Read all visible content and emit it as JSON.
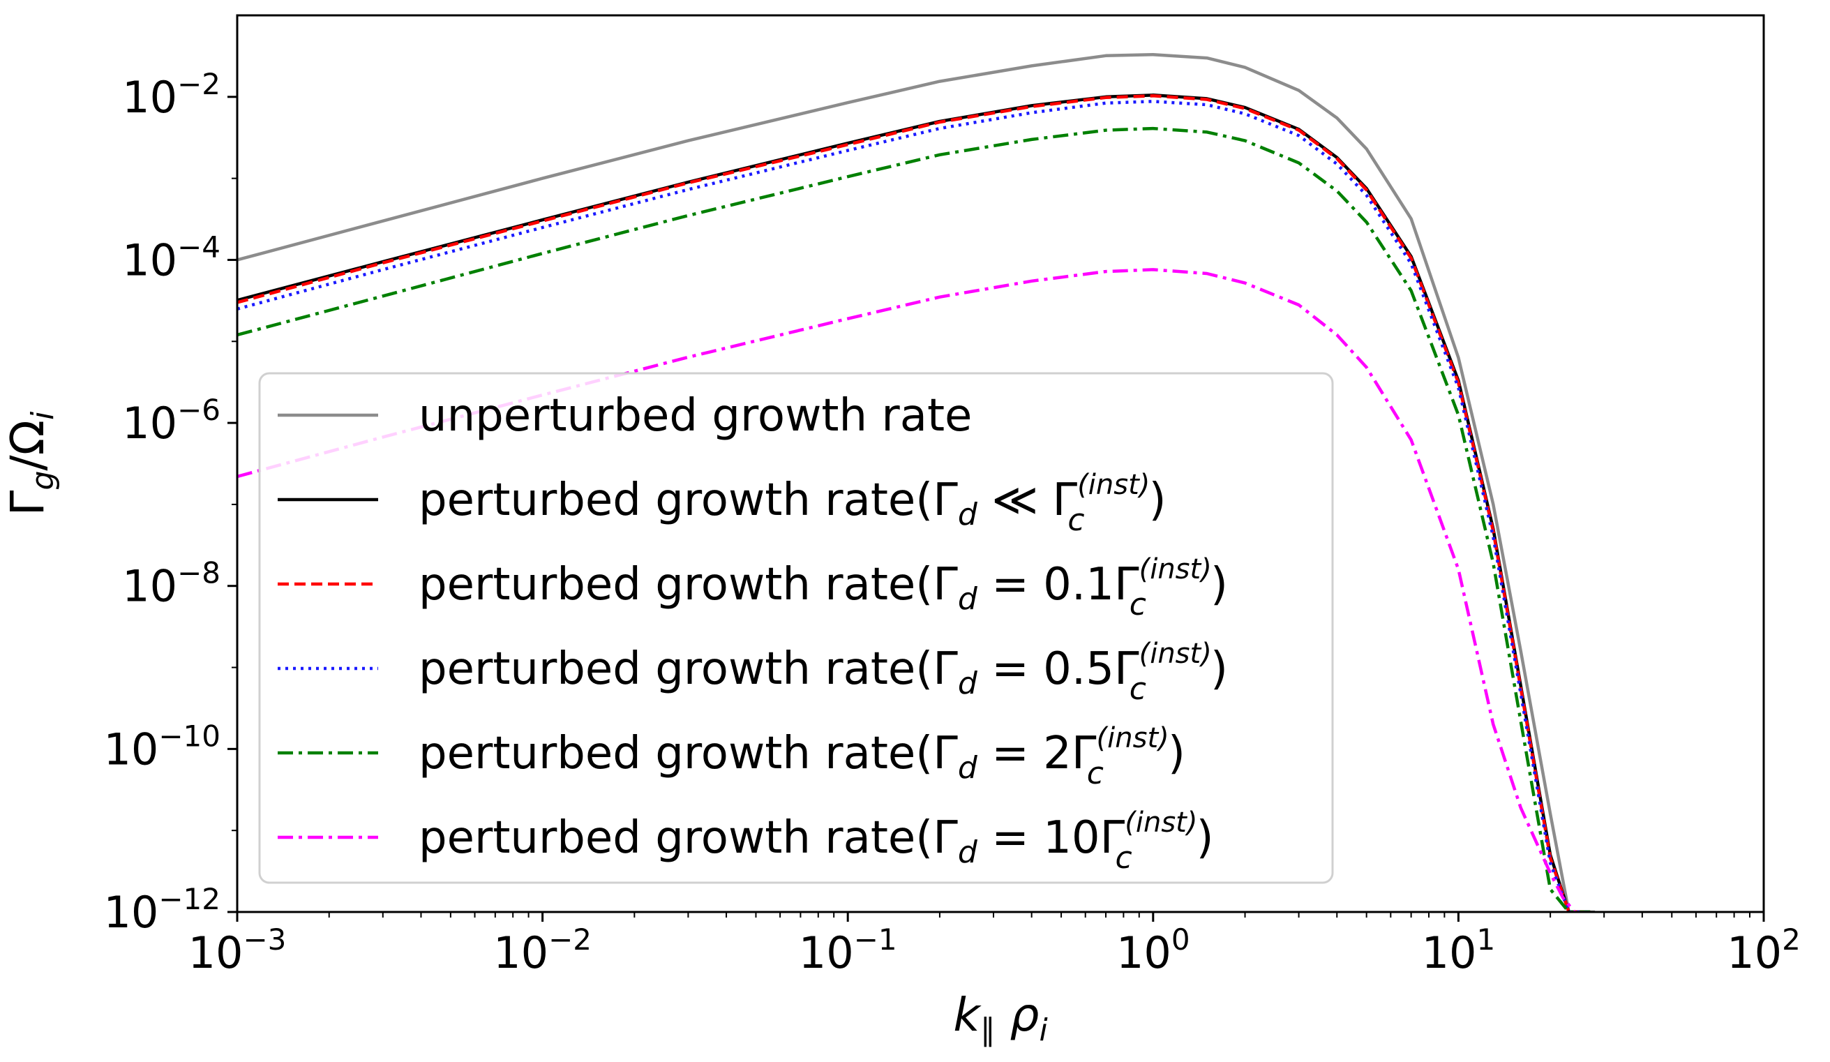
{
  "chart_data": {
    "type": "line",
    "xscale": "log",
    "yscale": "log",
    "xlim": [
      0.001,
      100
    ],
    "ylim": [
      1e-12,
      0.1
    ],
    "grid": false,
    "legend_position": "lower-left",
    "xlabel": {
      "base": "k",
      "sub": "∥",
      "rest": "ρ",
      "rest_sub": "i"
    },
    "ylabel": {
      "base": "Γ",
      "sub": "g",
      "rest": "/Ω",
      "rest_sub": "i"
    },
    "x_ticks": [
      {
        "value": 0.001,
        "base": "10",
        "exp": "−3"
      },
      {
        "value": 0.01,
        "base": "10",
        "exp": "−2"
      },
      {
        "value": 0.1,
        "base": "10",
        "exp": "−1"
      },
      {
        "value": 1,
        "base": "10",
        "exp": "0"
      },
      {
        "value": 10,
        "base": "10",
        "exp": "1"
      },
      {
        "value": 100,
        "base": "10",
        "exp": "2"
      }
    ],
    "y_ticks": [
      {
        "value": 1e-12,
        "base": "10",
        "exp": "−12"
      },
      {
        "value": 1e-10,
        "base": "10",
        "exp": "−10"
      },
      {
        "value": 1e-08,
        "base": "10",
        "exp": "−8"
      },
      {
        "value": 1e-06,
        "base": "10",
        "exp": "−6"
      },
      {
        "value": 0.0001,
        "base": "10",
        "exp": "−4"
      },
      {
        "value": 0.01,
        "base": "10",
        "exp": "−2"
      }
    ],
    "series": [
      {
        "name": "unperturbed growth rate",
        "color": "#8c8c8c",
        "dash": "solid",
        "x": [
          0.001,
          0.003,
          0.01,
          0.03,
          0.1,
          0.2,
          0.4,
          0.7,
          1.0,
          1.5,
          2,
          3,
          4,
          5,
          7,
          10,
          13,
          16,
          20,
          23,
          26,
          28
        ],
        "y": [
          0.0001,
          0.0003,
          0.001,
          0.0029,
          0.0085,
          0.0155,
          0.024,
          0.032,
          0.033,
          0.03,
          0.023,
          0.012,
          0.0055,
          0.0023,
          0.00032,
          6.3e-06,
          1e-07,
          1.6e-09,
          1.6e-11,
          1e-12,
          1e-12,
          1e-12
        ]
      },
      {
        "name": "perturbed growth rate(Γ_d ≪ Γ_c^(inst))",
        "color": "#000000",
        "dash": "solid",
        "legend_main": "perturbed growth rate(Γ",
        "legend_sub": "d",
        "legend_mid": " ≪ Γ",
        "legend_sup": "(inst)",
        "legend_sub2": "c",
        "legend_end": ")",
        "x": [
          0.001,
          0.003,
          0.01,
          0.03,
          0.1,
          0.2,
          0.4,
          0.7,
          1.0,
          1.5,
          2,
          3,
          4,
          5,
          7,
          10,
          13,
          16,
          20,
          23,
          26,
          27
        ],
        "y": [
          3.2e-05,
          9.5e-05,
          0.00031,
          0.0009,
          0.0027,
          0.005,
          0.0078,
          0.01,
          0.0105,
          0.0095,
          0.0074,
          0.004,
          0.0018,
          0.00075,
          0.00011,
          3.3e-06,
          5e-08,
          6e-10,
          5e-12,
          1e-12,
          1e-12,
          1e-12
        ]
      },
      {
        "name": "perturbed growth rate(Γ_d = 0.1Γ_c^(inst))",
        "color": "#ff0000",
        "dash": "dashed",
        "legend_main": "perturbed growth rate(Γ",
        "legend_sub": "d",
        "legend_mid": " = 0.1Γ",
        "legend_sup": "(inst)",
        "legend_sub2": "c",
        "legend_end": ")",
        "x": [
          0.001,
          0.003,
          0.01,
          0.03,
          0.1,
          0.2,
          0.4,
          0.7,
          1.0,
          1.5,
          2,
          3,
          4,
          5,
          7,
          10,
          13,
          16,
          20,
          23,
          26,
          27
        ],
        "y": [
          3e-05,
          9.2e-05,
          0.0003,
          0.00088,
          0.0026,
          0.0049,
          0.0076,
          0.0098,
          0.0103,
          0.0093,
          0.0072,
          0.0039,
          0.00175,
          0.00072,
          0.000105,
          3.1e-06,
          4.7e-08,
          5.6e-10,
          4.6e-12,
          1e-12,
          1e-12,
          1e-12
        ]
      },
      {
        "name": "perturbed growth rate(Γ_d = 0.5Γ_c^(inst))",
        "color": "#1a1aff",
        "dash": "dotted",
        "legend_main": "perturbed growth rate(Γ",
        "legend_sub": "d",
        "legend_mid": " = 0.5Γ",
        "legend_sup": "(inst)",
        "legend_sub2": "c",
        "legend_end": ")",
        "x": [
          0.001,
          0.003,
          0.01,
          0.03,
          0.1,
          0.2,
          0.4,
          0.7,
          1.0,
          1.5,
          2,
          3,
          4,
          5,
          7,
          10,
          13,
          16,
          20,
          23,
          26,
          27
        ],
        "y": [
          2.5e-05,
          7.6e-05,
          0.00025,
          0.00073,
          0.0022,
          0.0041,
          0.0064,
          0.0084,
          0.0088,
          0.008,
          0.0062,
          0.00335,
          0.0015,
          0.00062,
          9e-05,
          2.7e-06,
          4e-08,
          4.8e-10,
          4e-12,
          1e-12,
          1e-12,
          1e-12
        ]
      },
      {
        "name": "perturbed growth rate(Γ_d = 2Γ_c^(inst))",
        "color": "#008000",
        "dash": "dashdot",
        "legend_main": "perturbed growth rate(Γ",
        "legend_sub": "d",
        "legend_mid": " = 2Γ",
        "legend_sup": "(inst)",
        "legend_sub2": "c",
        "legend_end": ")",
        "x": [
          0.001,
          0.003,
          0.01,
          0.03,
          0.1,
          0.2,
          0.4,
          0.7,
          1.0,
          1.5,
          2,
          3,
          4,
          5,
          7,
          10,
          13,
          16,
          20,
          23,
          26,
          27
        ],
        "y": [
          1.2e-05,
          3.6e-05,
          0.00012,
          0.00035,
          0.00105,
          0.00195,
          0.003,
          0.0039,
          0.0041,
          0.0037,
          0.0029,
          0.00155,
          0.0007,
          0.00029,
          4.2e-05,
          1.25e-06,
          1.9e-08,
          2.2e-10,
          1.9e-12,
          1e-12,
          1e-12,
          1e-12
        ]
      },
      {
        "name": "perturbed growth rate(Γ_d = 10Γ_c^(inst))",
        "color": "#ff00ff",
        "dash": "dashdot",
        "legend_main": "perturbed growth rate(Γ",
        "legend_sub": "d",
        "legend_mid": " = 10Γ",
        "legend_sup": "(inst)",
        "legend_sub2": "c",
        "legend_end": ")",
        "x": [
          0.001,
          0.003,
          0.01,
          0.03,
          0.1,
          0.2,
          0.4,
          0.7,
          1.0,
          1.5,
          2,
          3,
          4,
          5,
          7,
          10,
          13,
          16,
          20,
          22,
          24
        ],
        "y": [
          2.2e-07,
          6.7e-07,
          2.2e-06,
          6.4e-06,
          1.9e-05,
          3.5e-05,
          5.5e-05,
          7.2e-05,
          7.6e-05,
          6.8e-05,
          5.2e-05,
          2.8e-05,
          1.2e-05,
          4.8e-06,
          6.2e-07,
          1.6e-08,
          2e-10,
          1.9e-11,
          3e-12,
          1.5e-12,
          1e-12
        ]
      }
    ],
    "legend_first": "unperturbed growth rate"
  }
}
